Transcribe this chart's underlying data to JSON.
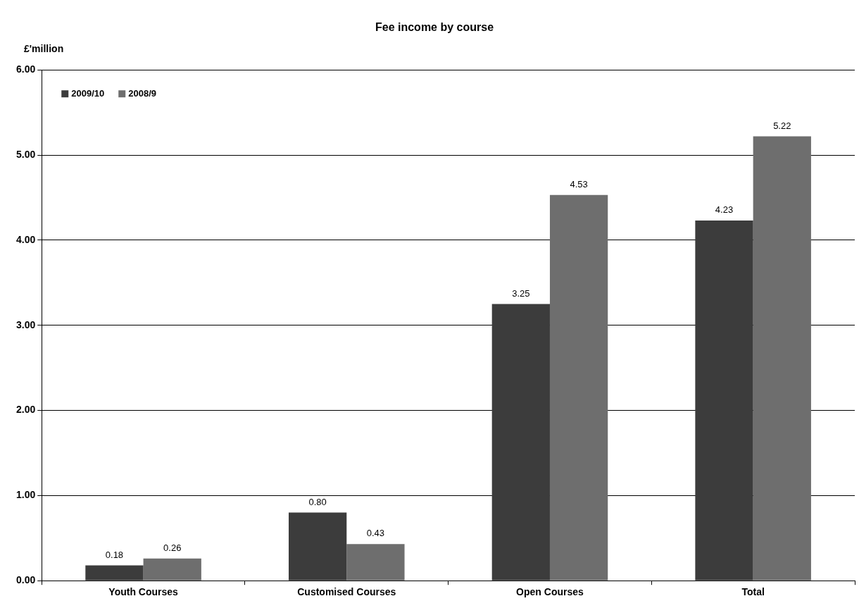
{
  "chart_data": {
    "type": "bar",
    "title": "Fee income by course",
    "ylabel": "£'million",
    "categories": [
      "Youth Courses",
      "Customised Courses",
      "Open Courses",
      "Total"
    ],
    "series": [
      {
        "name": "2009/10",
        "color": "#3c3c3c",
        "values": [
          0.18,
          0.8,
          3.25,
          4.23
        ],
        "value_labels": [
          "0.18",
          "0.80",
          "3.25",
          "4.23"
        ]
      },
      {
        "name": "2008/9",
        "color": "#6e6e6e",
        "values": [
          0.26,
          0.43,
          4.53,
          5.22
        ],
        "value_labels": [
          "0.26",
          "0.43",
          "4.53",
          "5.22"
        ]
      }
    ],
    "ylim": [
      0,
      6
    ],
    "yticks": [
      {
        "value": 0,
        "label": "0.00"
      },
      {
        "value": 1,
        "label": "1.00"
      },
      {
        "value": 2,
        "label": "2.00"
      },
      {
        "value": 3,
        "label": "3.00"
      },
      {
        "value": 4,
        "label": "4.00"
      },
      {
        "value": 5,
        "label": "5.00"
      },
      {
        "value": 6,
        "label": "6.00"
      }
    ],
    "grid": "y",
    "legend": "top left"
  }
}
